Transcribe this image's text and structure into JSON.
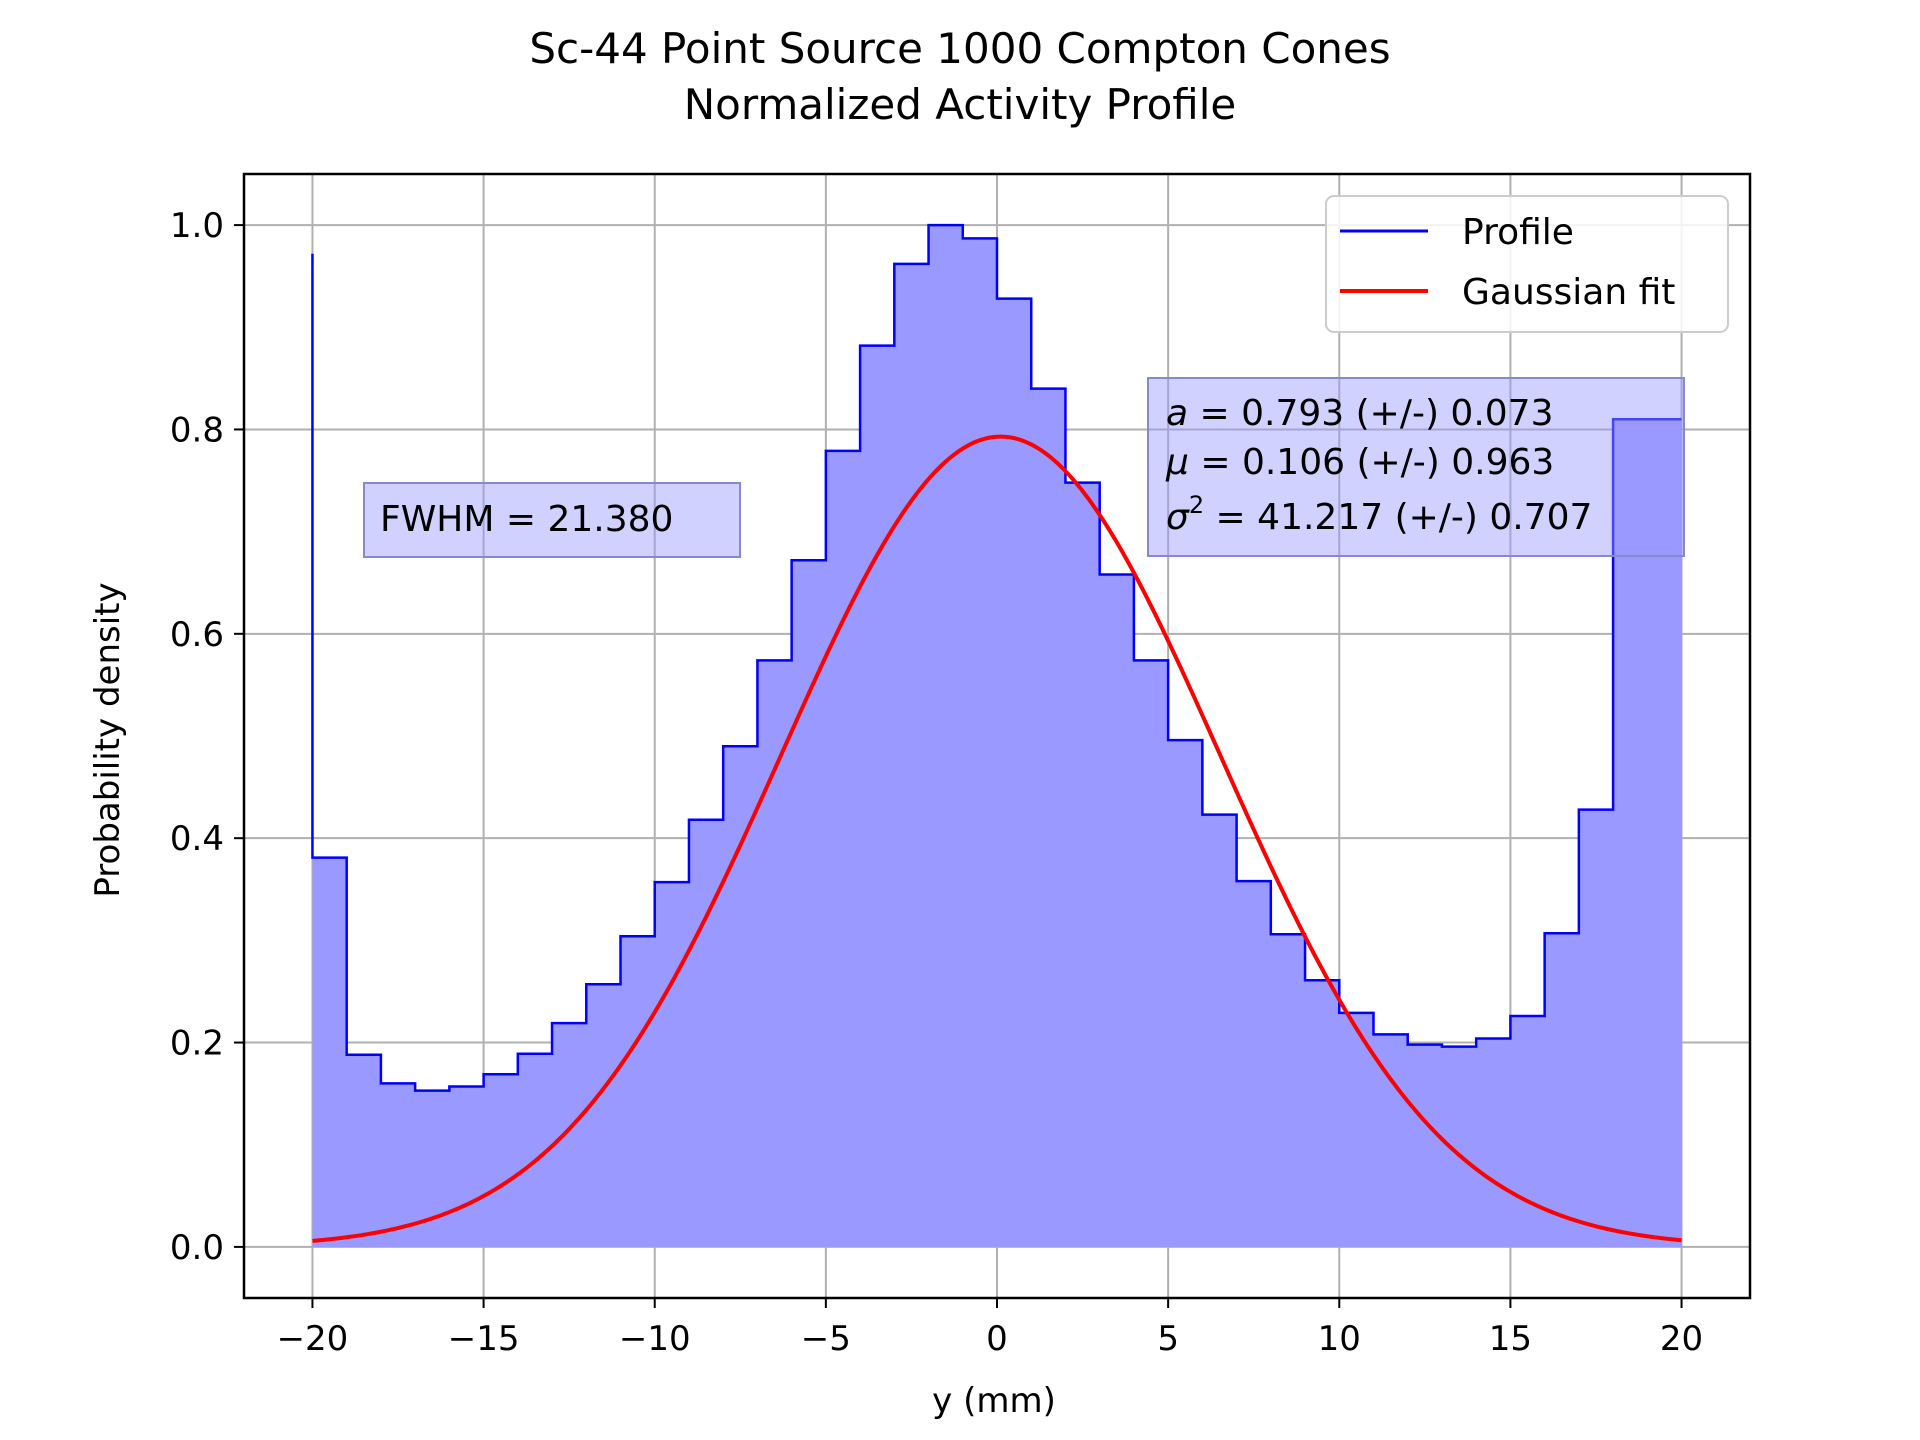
{
  "chart_data": {
    "type": "histogram",
    "title": [
      "Sc-44 Point Source 1000 Compton Cones",
      "Normalized Activity Profile"
    ],
    "xlabel": "y (mm)",
    "ylabel": "Probability density",
    "xlim": [
      -22,
      22
    ],
    "ylim": [
      -0.05,
      1.05
    ],
    "xticks": [
      -20,
      -15,
      -10,
      -5,
      0,
      5,
      10,
      15,
      20
    ],
    "xtick_labels": [
      "−20",
      "−15",
      "−10",
      "−5",
      "0",
      "5",
      "10",
      "15",
      "20"
    ],
    "yticks": [
      0.0,
      0.2,
      0.4,
      0.6,
      0.8,
      1.0
    ],
    "ytick_labels": [
      "0.0",
      "0.2",
      "0.4",
      "0.6",
      "0.8",
      "1.0"
    ],
    "grid": true,
    "legend_position": "top-right",
    "bin_edges": [
      -20,
      -19,
      -18,
      -17,
      -16,
      -15,
      -14,
      -13,
      -12,
      -11,
      -10,
      -9,
      -8,
      -7,
      -6,
      -5,
      -4,
      -3,
      -2,
      -1,
      0,
      1,
      2,
      3,
      4,
      5,
      6,
      7,
      8,
      9,
      10,
      11,
      12,
      13,
      14,
      15,
      16,
      17,
      18,
      19,
      20
    ],
    "initial_spike": 0.972,
    "series": [
      {
        "name": "Profile",
        "kind": "step",
        "color": "#0000ff",
        "fill_color": "#9999ff",
        "values": [
          0.381,
          0.188,
          0.16,
          0.153,
          0.157,
          0.169,
          0.189,
          0.219,
          0.257,
          0.304,
          0.357,
          0.418,
          0.49,
          0.574,
          0.672,
          0.779,
          0.882,
          0.962,
          1.0,
          0.987,
          0.928,
          0.84,
          0.748,
          0.658,
          0.574,
          0.496,
          0.423,
          0.358,
          0.306,
          0.261,
          0.229,
          0.208,
          0.198,
          0.196,
          0.204,
          0.226,
          0.307,
          0.428,
          0.81,
          0.81
        ]
      },
      {
        "name": "Gaussian fit",
        "kind": "curve",
        "color": "#ff0000",
        "params": {
          "a": 0.793,
          "mu": 0.106,
          "sigma2": 41.217
        }
      }
    ],
    "annotations": {
      "fwhm": "FWHM = 21.380",
      "fit_a": {
        "symbol": "a",
        "text": " = 0.793 (+/-) 0.073"
      },
      "fit_mu": {
        "symbol": "μ",
        "text": " = 0.106 (+/-) 0.963"
      },
      "fit_sigma": {
        "symbol": "σ",
        "sup": "2",
        "text": " = 41.217 (+/-) 0.707"
      }
    }
  }
}
